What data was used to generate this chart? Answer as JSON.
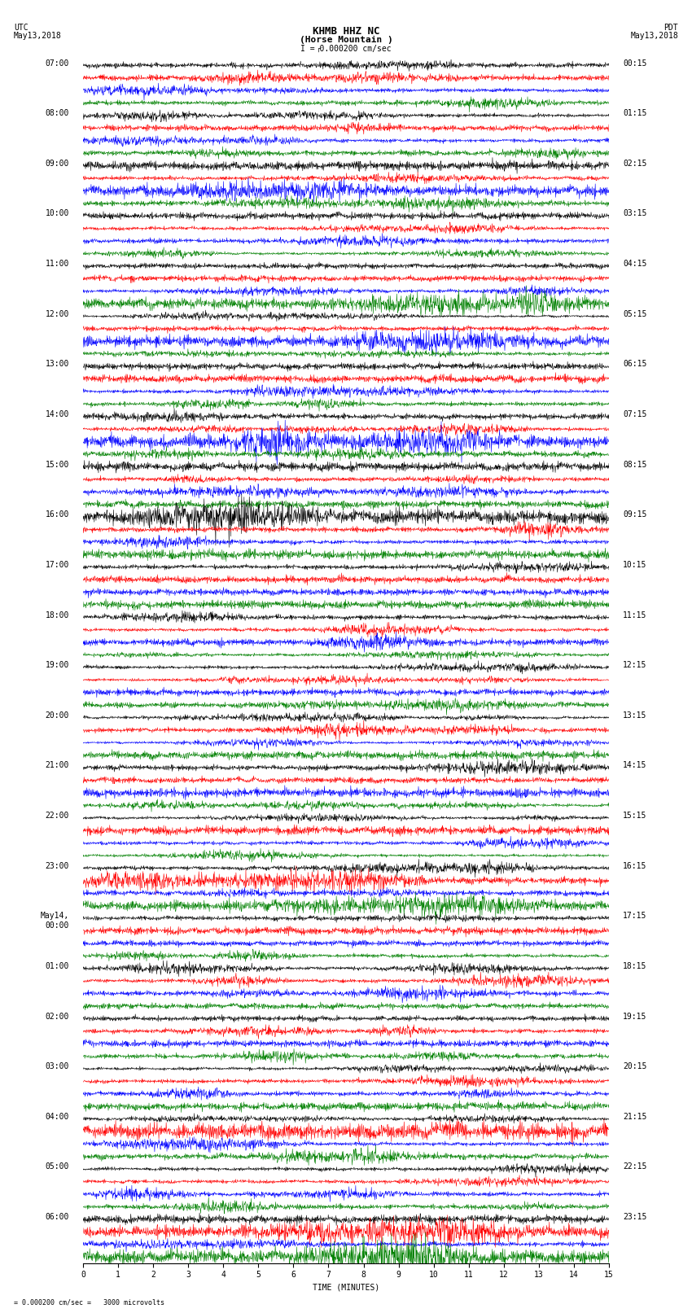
{
  "title_line1": "KHMB HHZ NC",
  "title_line2": "(Horse Mountain )",
  "scale_label": "I = 0.000200 cm/sec",
  "left_header_line1": "UTC",
  "left_header_line2": "May13,2018",
  "right_header_line1": "PDT",
  "right_header_line2": "May13,2018",
  "bottom_label": "TIME (MINUTES)",
  "bottom_note": "= 0.000200 cm/sec =   3000 microvolts",
  "left_times": [
    "07:00",
    "08:00",
    "09:00",
    "10:00",
    "11:00",
    "12:00",
    "13:00",
    "14:00",
    "15:00",
    "16:00",
    "17:00",
    "18:00",
    "19:00",
    "20:00",
    "21:00",
    "22:00",
    "23:00",
    "May14,\n00:00",
    "01:00",
    "02:00",
    "03:00",
    "04:00",
    "05:00",
    "06:00"
  ],
  "right_times": [
    "00:15",
    "01:15",
    "02:15",
    "03:15",
    "04:15",
    "05:15",
    "06:15",
    "07:15",
    "08:15",
    "09:15",
    "10:15",
    "11:15",
    "12:15",
    "13:15",
    "14:15",
    "15:15",
    "16:15",
    "17:15",
    "18:15",
    "19:15",
    "20:15",
    "21:15",
    "22:15",
    "23:15"
  ],
  "trace_colors": [
    "black",
    "red",
    "blue",
    "green"
  ],
  "x_ticks": [
    0,
    1,
    2,
    3,
    4,
    5,
    6,
    7,
    8,
    9,
    10,
    11,
    12,
    13,
    14,
    15
  ],
  "x_min": 0,
  "x_max": 15,
  "bg_color": "white",
  "n_hours": 24,
  "n_cols": 1500,
  "font_size_title": 9,
  "font_size_labels": 7,
  "font_size_axis": 7,
  "font_size_ticks": 7
}
